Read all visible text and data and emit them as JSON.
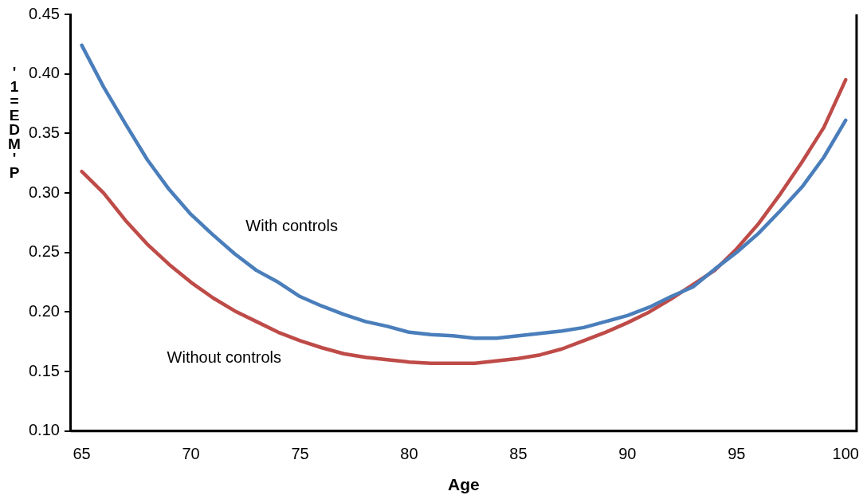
{
  "chart_data": {
    "type": "line",
    "xlabel": "Age",
    "ylabel": "'1=EDM'P",
    "categories": [
      "65",
      null,
      null,
      null,
      null,
      "70",
      null,
      null,
      null,
      null,
      "75",
      null,
      null,
      null,
      null,
      "80",
      null,
      null,
      null,
      null,
      "85",
      null,
      null,
      null,
      null,
      "90",
      null,
      null,
      null,
      null,
      "95",
      null,
      null,
      null,
      null,
      "100"
    ],
    "series": [
      {
        "name": "With controls",
        "color": "#4a7ebb",
        "values": [
          0.424,
          0.389,
          0.358,
          0.328,
          0.303,
          0.282,
          0.265,
          0.249,
          0.235,
          0.225,
          0.213,
          0.205,
          0.198,
          0.192,
          0.188,
          0.183,
          0.181,
          0.18,
          0.178,
          0.178,
          0.18,
          0.182,
          0.184,
          0.187,
          0.192,
          0.197,
          0.204,
          0.213,
          0.221,
          0.236,
          0.25,
          0.266,
          0.285,
          0.305,
          0.33,
          0.361
        ]
      },
      {
        "name": "Without controls",
        "color": "#be4b48",
        "values": [
          0.318,
          0.3,
          0.277,
          0.257,
          0.24,
          0.225,
          0.212,
          0.201,
          0.192,
          0.183,
          0.176,
          0.17,
          0.165,
          0.162,
          0.16,
          0.158,
          0.157,
          0.157,
          0.157,
          0.159,
          0.161,
          0.164,
          0.169,
          0.176,
          0.183,
          0.191,
          0.2,
          0.211,
          0.223,
          0.235,
          0.253,
          0.274,
          0.299,
          0.326,
          0.355,
          0.395
        ]
      }
    ],
    "ylim": [
      0.1,
      0.45
    ],
    "yticks": [
      {
        "value": 0.1,
        "label": "0.10"
      },
      {
        "value": 0.15,
        "label": "0.15"
      },
      {
        "value": 0.2,
        "label": "0.20"
      },
      {
        "value": 0.25,
        "label": "0.25"
      },
      {
        "value": 0.3,
        "label": "0.30"
      },
      {
        "value": 0.35,
        "label": "0.35"
      },
      {
        "value": 0.4,
        "label": "0.40"
      },
      {
        "value": 0.45,
        "label": "0.45"
      }
    ],
    "grid": false,
    "legend": false,
    "marker": "none",
    "line_style": "solid"
  }
}
